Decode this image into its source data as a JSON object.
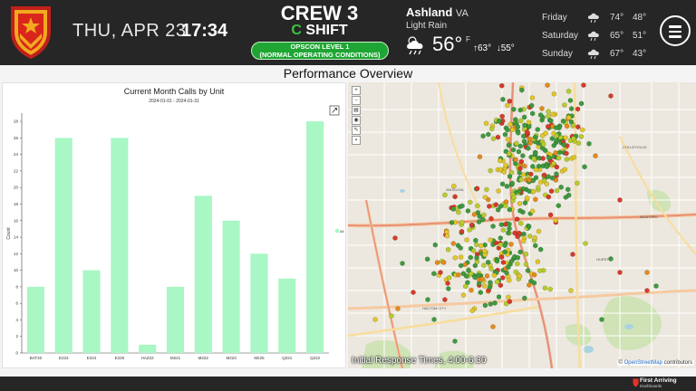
{
  "header": {
    "date": "THU, APR 23",
    "time": "17:34",
    "crew": "CREW 3",
    "shift_letter": "C",
    "shift_word": "SHIFT",
    "opscon_line1": "OPSCON LEVEL 1",
    "opscon_line2": "(NORMAL OPERATING CONDITIONS)",
    "accent_color": "#1fa534"
  },
  "weather": {
    "city": "Ashland",
    "state": "VA",
    "condition": "Light Rain",
    "icon": "rain-cloud-icon",
    "temp": "56°",
    "unit": "F",
    "high": "63°",
    "low": "55°",
    "forecast": [
      {
        "day": "Friday",
        "icon": "rain-cloud-icon",
        "high": "74°",
        "low": "48°"
      },
      {
        "day": "Saturday",
        "icon": "rain-cloud-icon",
        "high": "65°",
        "low": "51°"
      },
      {
        "day": "Sunday",
        "icon": "rain-cloud-icon",
        "high": "67°",
        "low": "43°"
      }
    ]
  },
  "page": {
    "title": "Performance Overview"
  },
  "chart_data": {
    "type": "bar",
    "title": "Current Month Calls by Unit",
    "subtitle": "2024-01-01 - 2024-01-31",
    "xlabel": "",
    "ylabel": "Count",
    "categories": [
      "BAT20",
      "E223",
      "E224",
      "E225",
      "HAZ22",
      "M221",
      "M222",
      "M223",
      "M225",
      "Q221",
      "Q222"
    ],
    "series": [
      {
        "name": "All",
        "values": [
          8,
          26,
          10,
          26,
          1,
          8,
          19,
          16,
          12,
          9,
          28
        ],
        "color": "#a8f7c4"
      }
    ],
    "ylim": [
      0,
      29
    ],
    "yticks": [
      0,
      2,
      4,
      6,
      8,
      10,
      12,
      14,
      16,
      18,
      20,
      22,
      24,
      26,
      28
    ],
    "grid": false,
    "legend": "right"
  },
  "map": {
    "label": "Initial Response Times, 4:00-6:30",
    "attribution_prefix": "©",
    "attribution_link": "OpenStreetMap",
    "attribution_suffix": "contributors",
    "place_labels": [
      "COLLEYVILLE",
      "WATAUGA",
      "BEDFORD",
      "HURST",
      "HALTOM CITY"
    ],
    "marker_colors": [
      "#3d9a3d",
      "#b8cc2c",
      "#e2c628",
      "#e48a1c",
      "#d63a2a"
    ]
  },
  "footer": {
    "brand": "First Arriving",
    "brand_sub": "Dashboards"
  }
}
